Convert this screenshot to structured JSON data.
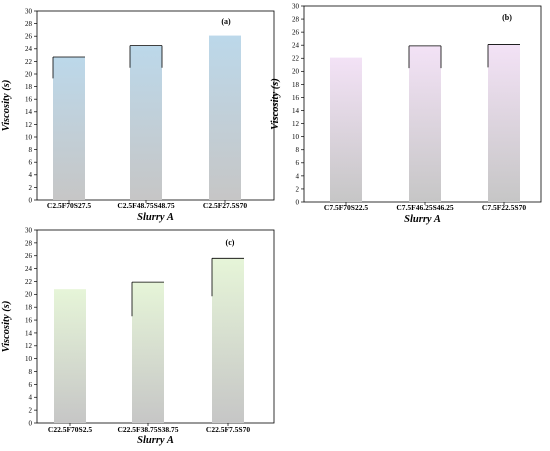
{
  "chart_data": [
    {
      "type": "bar",
      "panel_label": "(a)",
      "categories": [
        "C2.5F70S27.5",
        "C2.5F48.75S48.75",
        "C2.5F27.5S70"
      ],
      "values": [
        22.7,
        24.5,
        26.1
      ],
      "error_bars": [
        {
          "low": 19.3,
          "high": 22.7,
          "side": "left"
        },
        {
          "low": 21.0,
          "high": 24.5,
          "side": "both"
        },
        {
          "low": 26.1,
          "high": 26.1,
          "side": "none"
        }
      ],
      "title": "",
      "xlabel": "Slurry A",
      "ylabel": "Viscosity (s)",
      "ylim": [
        0,
        30
      ],
      "yticks": [
        0,
        2,
        4,
        6,
        8,
        10,
        12,
        14,
        16,
        18,
        20,
        22,
        24,
        26,
        28,
        30
      ],
      "bar_top_color": "#bcd8ea",
      "bar_bottom_color": "#c6c6c6"
    },
    {
      "type": "bar",
      "panel_label": "(b)",
      "categories": [
        "C7.5F70S22.5",
        "C7.5F46.25S46.25",
        "C7.5F22.5S70"
      ],
      "values": [
        22.1,
        23.9,
        24.1
      ],
      "error_bars": [
        {
          "low": 22.1,
          "high": 22.1,
          "side": "none"
        },
        {
          "low": 20.5,
          "high": 23.9,
          "side": "both"
        },
        {
          "low": 20.6,
          "high": 24.1,
          "side": "left"
        }
      ],
      "title": "",
      "xlabel": "Slurry A",
      "ylabel": "Viscosity (s)",
      "ylim": [
        0,
        30
      ],
      "yticks": [
        0,
        2,
        4,
        6,
        8,
        10,
        12,
        14,
        16,
        18,
        20,
        22,
        24,
        26,
        28,
        30
      ],
      "bar_top_color": "#f3e2f6",
      "bar_bottom_color": "#c6c6c6"
    },
    {
      "type": "bar",
      "panel_label": "(c)",
      "categories": [
        "C22.5F70S2.5",
        "C22.5F38.75S38.75",
        "C22.5F7.5S70"
      ],
      "values": [
        20.8,
        21.9,
        25.6
      ],
      "error_bars": [
        {
          "low": 20.8,
          "high": 20.8,
          "side": "none"
        },
        {
          "low": 16.6,
          "high": 21.9,
          "side": "left"
        },
        {
          "low": 19.7,
          "high": 25.6,
          "side": "left"
        }
      ],
      "title": "",
      "xlabel": "Slurry A",
      "ylabel": "Viscosity (s)",
      "ylim": [
        0,
        30
      ],
      "yticks": [
        0,
        2,
        4,
        6,
        8,
        10,
        12,
        14,
        16,
        18,
        20,
        22,
        24,
        26,
        28,
        30
      ],
      "bar_top_color": "#e6f5d8",
      "bar_bottom_color": "#c6c6c6"
    }
  ]
}
